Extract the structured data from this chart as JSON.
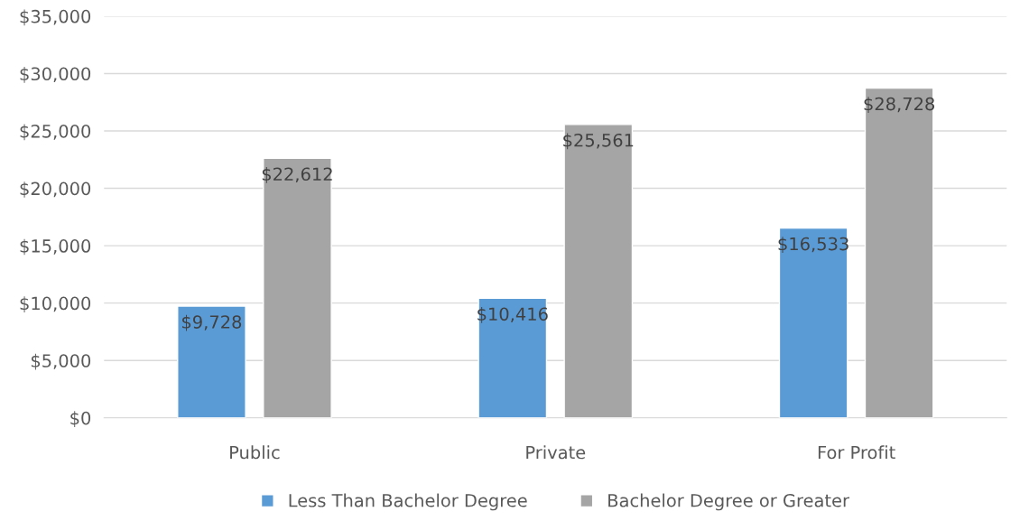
{
  "chart_data": {
    "type": "bar",
    "categories": [
      "Public",
      "Private",
      "For Profit"
    ],
    "series": [
      {
        "name": "Less Than Bachelor Degree",
        "color": "#5b9bd5",
        "values": [
          9728,
          10416,
          16533
        ],
        "value_labels": [
          "$9,728",
          "$10,416",
          "$16,533"
        ]
      },
      {
        "name": "Bachelor Degree or Greater",
        "color": "#a5a5a5",
        "values": [
          22612,
          25561,
          28728
        ],
        "value_labels": [
          "$22,612",
          "$25,561",
          "$28,728"
        ]
      }
    ],
    "ylim": [
      0,
      35000
    ],
    "yticks": [
      {
        "value": 0,
        "label": "$0"
      },
      {
        "value": 5000,
        "label": "$5,000"
      },
      {
        "value": 10000,
        "label": "$10,000"
      },
      {
        "value": 15000,
        "label": "$15,000"
      },
      {
        "value": 20000,
        "label": "$20,000"
      },
      {
        "value": 25000,
        "label": "$25,000"
      },
      {
        "value": 30000,
        "label": "$30,000"
      },
      {
        "value": 35000,
        "label": "$35,000"
      }
    ],
    "grid": "y",
    "legend": "bottom"
  }
}
